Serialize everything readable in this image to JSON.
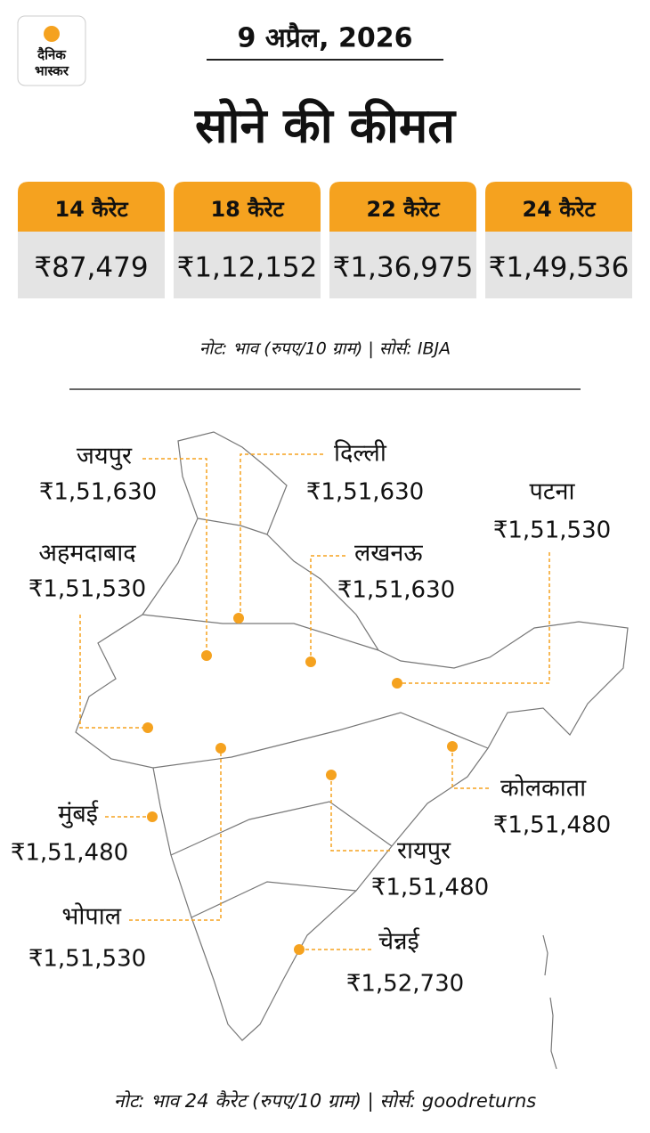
{
  "header": {
    "logo": [
      "दैनिक",
      "भास्कर"
    ],
    "date": "9 अप्रैल, 2026",
    "title": "सोने की कीमत"
  },
  "cards": [
    {
      "label": "14 कैरेट",
      "price": "₹87,479"
    },
    {
      "label": "18 कैरेट",
      "price": "₹1,12,152"
    },
    {
      "label": "22 कैरेट",
      "price": "₹1,36,975"
    },
    {
      "label": "24 कैरेट",
      "price": "₹1,49,536"
    }
  ],
  "note_top": "नोट: भाव (रुपए/10 ग्राम)  |  सोर्स: IBJA",
  "cities": [
    {
      "name": "जयपुर",
      "price": "₹1,51,630"
    },
    {
      "name": "दिल्ली",
      "price": "₹1,51,630"
    },
    {
      "name": "पटना",
      "price": "₹1,51,530"
    },
    {
      "name": "अहमदाबाद",
      "price": "₹1,51,530"
    },
    {
      "name": "लखनऊ",
      "price": "₹1,51,630"
    },
    {
      "name": "कोलकाता",
      "price": "₹1,51,480"
    },
    {
      "name": "मुंबई",
      "price": "₹1,51,480"
    },
    {
      "name": "रायपुर",
      "price": "₹1,51,480"
    },
    {
      "name": "भोपाल",
      "price": "₹1,51,530"
    },
    {
      "name": "चेन्नई",
      "price": "₹1,52,730"
    }
  ],
  "note_bottom": "नोट: भाव 24 कैरेट (रुपए/10 ग्राम)  |  सोर्स: goodreturns"
}
